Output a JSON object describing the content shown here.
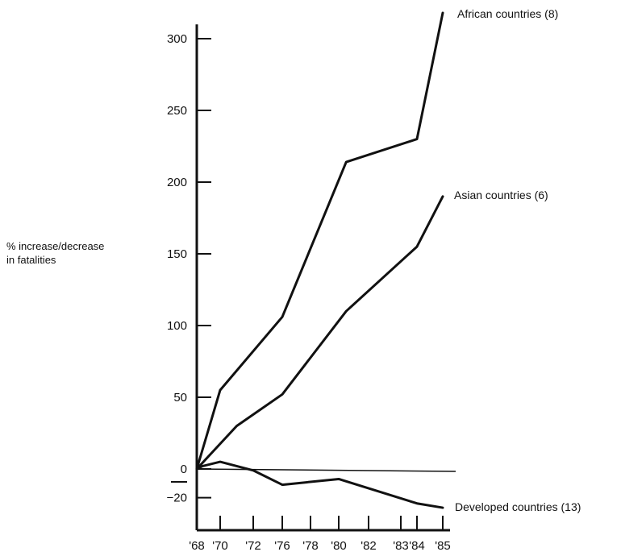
{
  "chart_data": {
    "type": "line",
    "ylabel": [
      "% increase/decrease",
      "in fatalities"
    ],
    "x_categories": [
      "'68",
      "'70",
      "'72",
      "'76",
      "'78",
      "'80",
      "'82",
      "'83",
      "'84",
      "'85"
    ],
    "x_years": [
      1968,
      1970,
      1972,
      1976,
      1978,
      1980,
      1982,
      1983,
      1984,
      1985
    ],
    "ylim": [
      -25,
      310
    ],
    "y_ticks": [
      300,
      250,
      200,
      150,
      100,
      50,
      0,
      -20
    ],
    "y_tick_labels": [
      "300",
      "250",
      "200",
      "150",
      "100",
      "50",
      "0",
      "−20"
    ],
    "grid": false,
    "legend": "none",
    "zero_line": {
      "y": 0,
      "x_end": 1988
    },
    "series": [
      {
        "name": "African countries (8)",
        "points": [
          {
            "x": 1968,
            "y": 0
          },
          {
            "x": 1970,
            "y": 55
          },
          {
            "x": 1976,
            "y": 106
          },
          {
            "x": 1980.5,
            "y": 214
          },
          {
            "x": 1984,
            "y": 230
          },
          {
            "x": 1985,
            "y": 318
          }
        ]
      },
      {
        "name": "Asian countries (6)",
        "points": [
          {
            "x": 1968,
            "y": 0
          },
          {
            "x": 1971,
            "y": 30
          },
          {
            "x": 1976,
            "y": 52
          },
          {
            "x": 1980.5,
            "y": 110
          },
          {
            "x": 1984,
            "y": 155
          },
          {
            "x": 1985,
            "y": 190
          }
        ]
      },
      {
        "name": "Developed countries (13)",
        "points": [
          {
            "x": 1968,
            "y": 0
          },
          {
            "x": 1968.5,
            "y": 2
          },
          {
            "x": 1970,
            "y": 5
          },
          {
            "x": 1972,
            "y": -1
          },
          {
            "x": 1976,
            "y": -11
          },
          {
            "x": 1980,
            "y": -7
          },
          {
            "x": 1984,
            "y": -24
          },
          {
            "x": 1985,
            "y": -27
          }
        ]
      }
    ]
  }
}
